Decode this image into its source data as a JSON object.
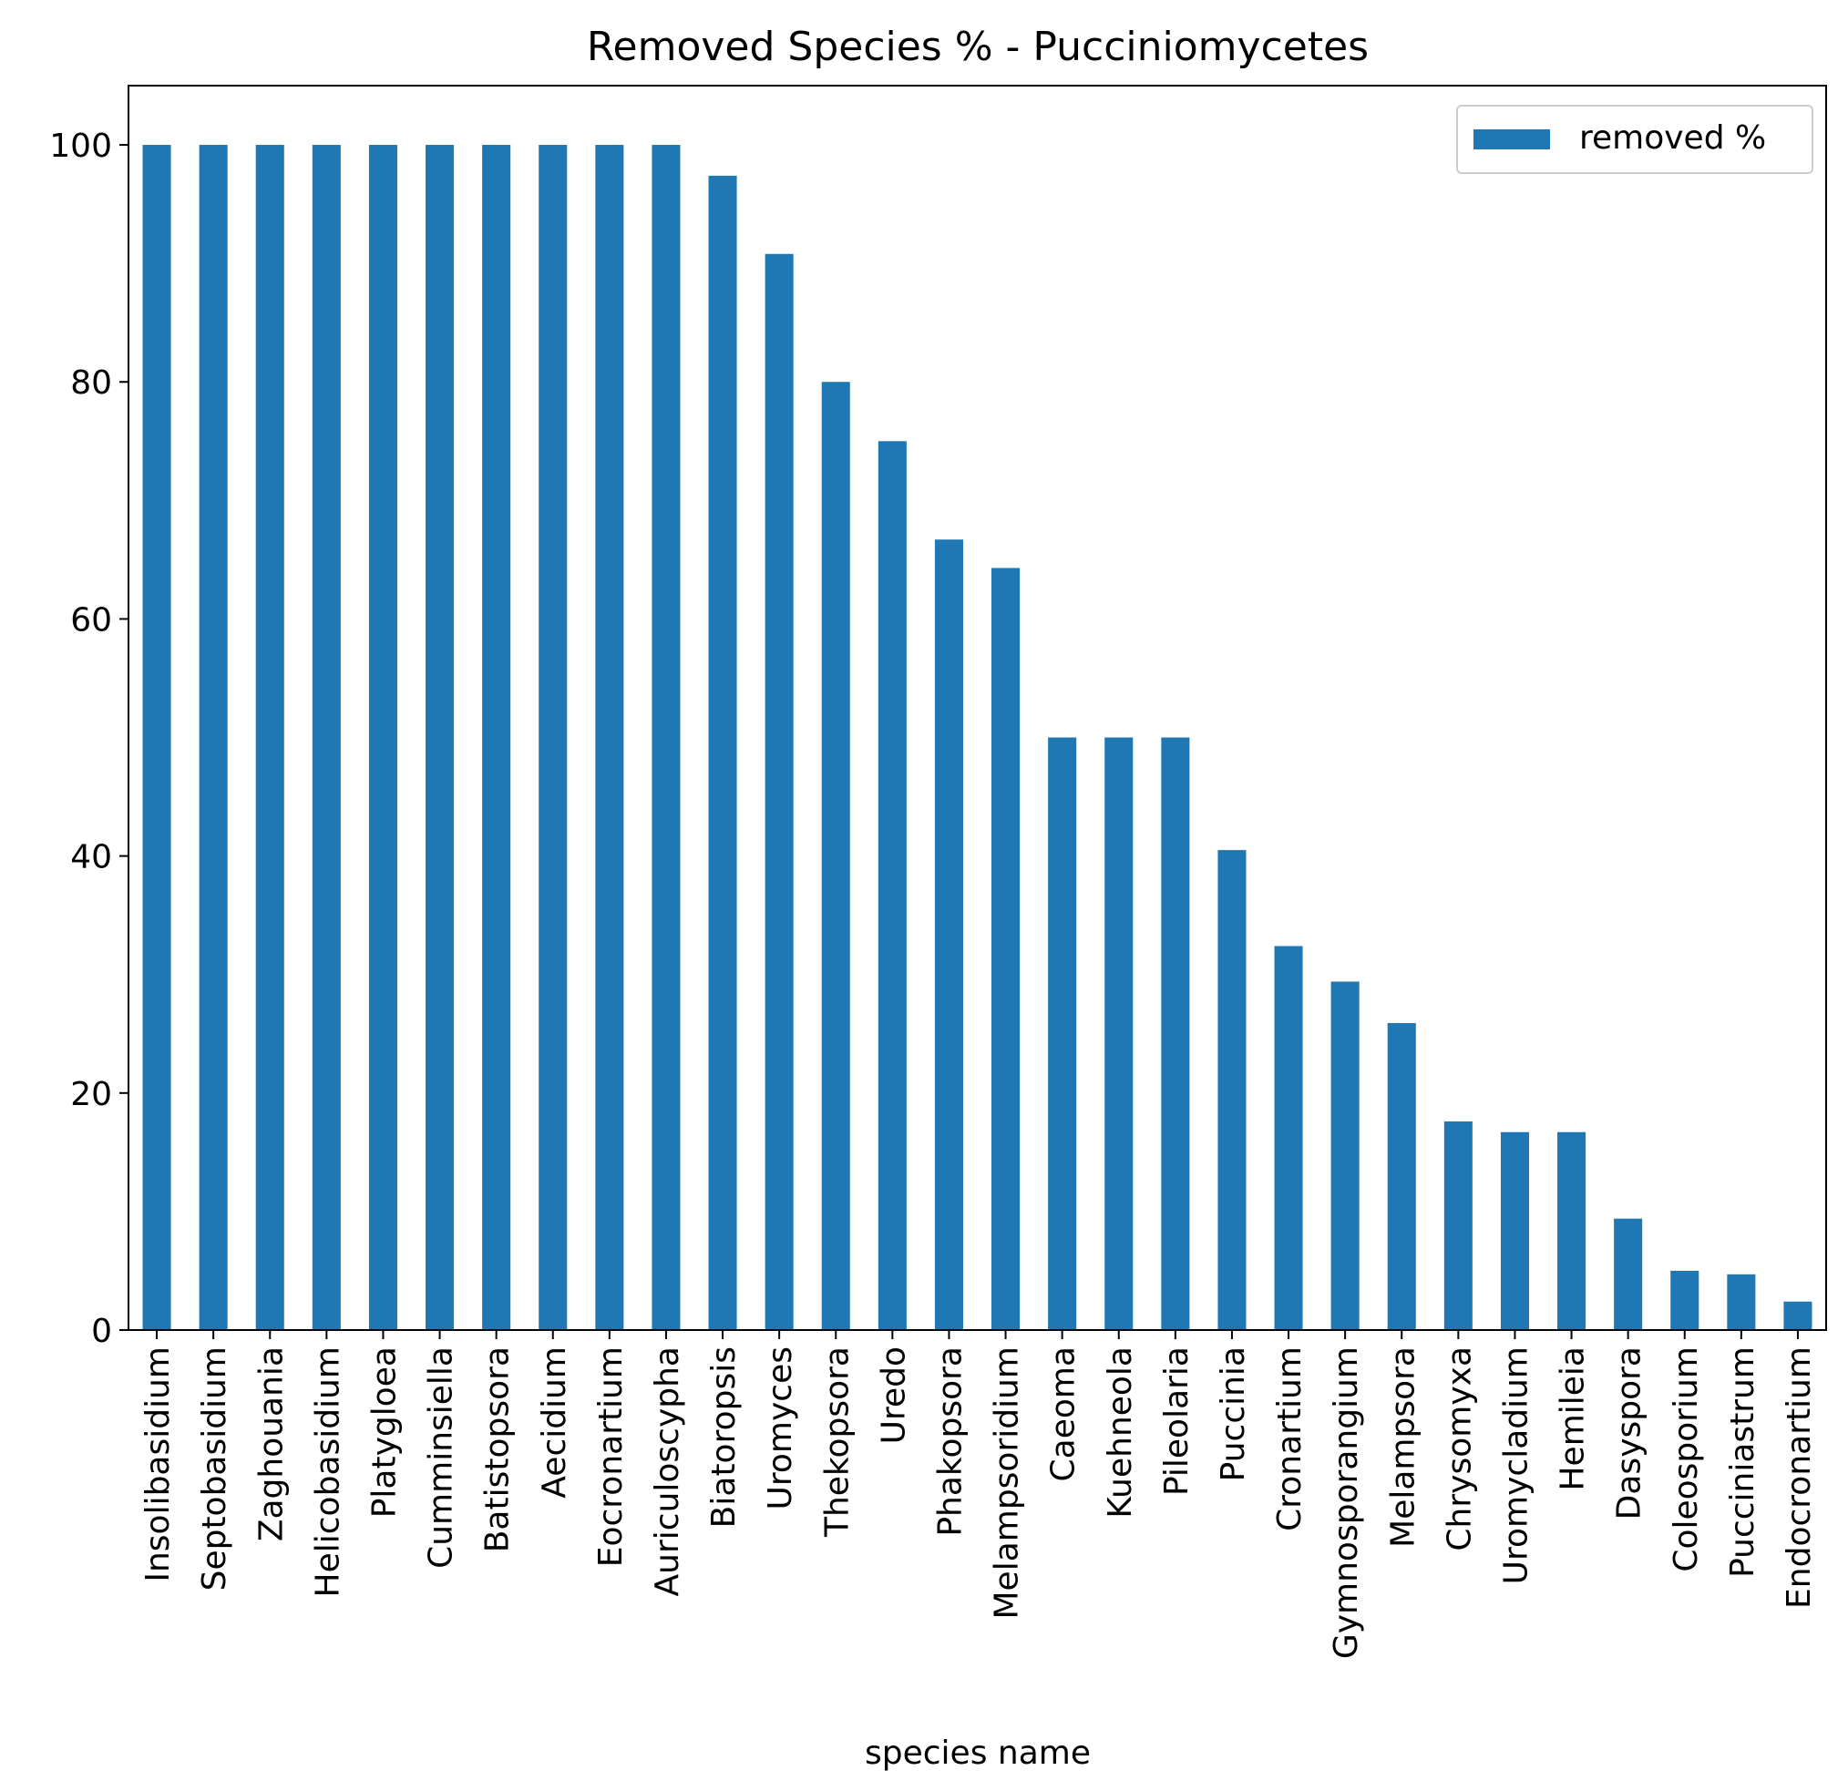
{
  "chart_data": {
    "type": "bar",
    "title": "Removed Species % - Pucciniomycetes",
    "xlabel": "species name",
    "ylabel": "",
    "ylim": [
      0,
      105
    ],
    "yticks": [
      0,
      20,
      40,
      60,
      80,
      100
    ],
    "grid": false,
    "legend_position": "top-right",
    "bar_color": "#1f77b4",
    "categories": [
      "Insolibasidium",
      "Septobasidium",
      "Zaghouania",
      "Helicobasidium",
      "Platygloea",
      "Cumminsiella",
      "Batistopsora",
      "Aecidium",
      "Eocronartium",
      "Auriculoscypha",
      "Biatoropsis",
      "Uromyces",
      "Thekopsora",
      "Uredo",
      "Phakopsora",
      "Melampsoridium",
      "Caeoma",
      "Kuehneola",
      "Pileolaria",
      "Puccinia",
      "Cronartium",
      "Gymnosporangium",
      "Melampsora",
      "Chrysomyxa",
      "Uromycladium",
      "Hemileia",
      "Dasyspora",
      "Coleosporium",
      "Pucciniastrum",
      "Endocronartium"
    ],
    "series": [
      {
        "name": "removed %",
        "values": [
          100,
          100,
          100,
          100,
          100,
          100,
          100,
          100,
          100,
          100,
          97.4,
          90.8,
          80,
          75,
          66.7,
          64.3,
          50,
          50,
          50,
          40.5,
          32.4,
          29.4,
          25.9,
          17.6,
          16.7,
          16.7,
          9.4,
          5.0,
          4.7,
          2.4
        ]
      }
    ]
  }
}
